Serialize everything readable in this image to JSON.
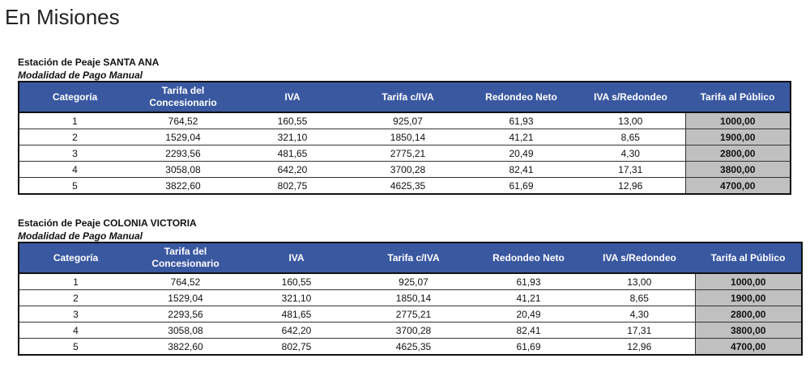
{
  "header": {
    "title": "En Misiones"
  },
  "sections": [
    {
      "station": "Estación de Peaje SANTA ANA",
      "mode": "Modalidad de Pago Manual",
      "table": {
        "headers": [
          "Categoría",
          "Tarifa del Concesionario",
          "IVA",
          "Tarifa c/IVA",
          "Redondeo Neto",
          "IVA s/Redondeo",
          "Tarifa al Público"
        ],
        "rows": [
          [
            "1",
            "764,52",
            "160,55",
            "925,07",
            "61,93",
            "13,00",
            "1000,00"
          ],
          [
            "2",
            "1529,04",
            "321,10",
            "1850,14",
            "41,21",
            "8,65",
            "1900,00"
          ],
          [
            "3",
            "2293,56",
            "481,65",
            "2775,21",
            "20,49",
            "4,30",
            "2800,00"
          ],
          [
            "4",
            "3058,08",
            "642,20",
            "3700,28",
            "82,41",
            "17,31",
            "3800,00"
          ],
          [
            "5",
            "3822,60",
            "802,75",
            "4625,35",
            "61,69",
            "12,96",
            "4700,00"
          ]
        ]
      }
    },
    {
      "station": "Estación de Peaje COLONIA VICTORIA",
      "mode": "Modalidad de Pago Manual",
      "table": {
        "headers": [
          "Categoría",
          "Tarifa del Concesionario",
          "IVA",
          "Tarifa c/IVA",
          "Redondeo Neto",
          "IVA s/Redondeo",
          "Tarifa al Público"
        ],
        "rows": [
          [
            "1",
            "764,52",
            "160,55",
            "925,07",
            "61,93",
            "13,00",
            "1000,00"
          ],
          [
            "2",
            "1529,04",
            "321,10",
            "1850,14",
            "41,21",
            "8,65",
            "1900,00"
          ],
          [
            "3",
            "2293,56",
            "481,65",
            "2775,21",
            "20,49",
            "4,30",
            "2800,00"
          ],
          [
            "4",
            "3058,08",
            "642,20",
            "3700,28",
            "82,41",
            "17,31",
            "3800,00"
          ],
          [
            "5",
            "3822,60",
            "802,75",
            "4625,35",
            "61,69",
            "12,96",
            "4700,00"
          ]
        ]
      }
    }
  ]
}
